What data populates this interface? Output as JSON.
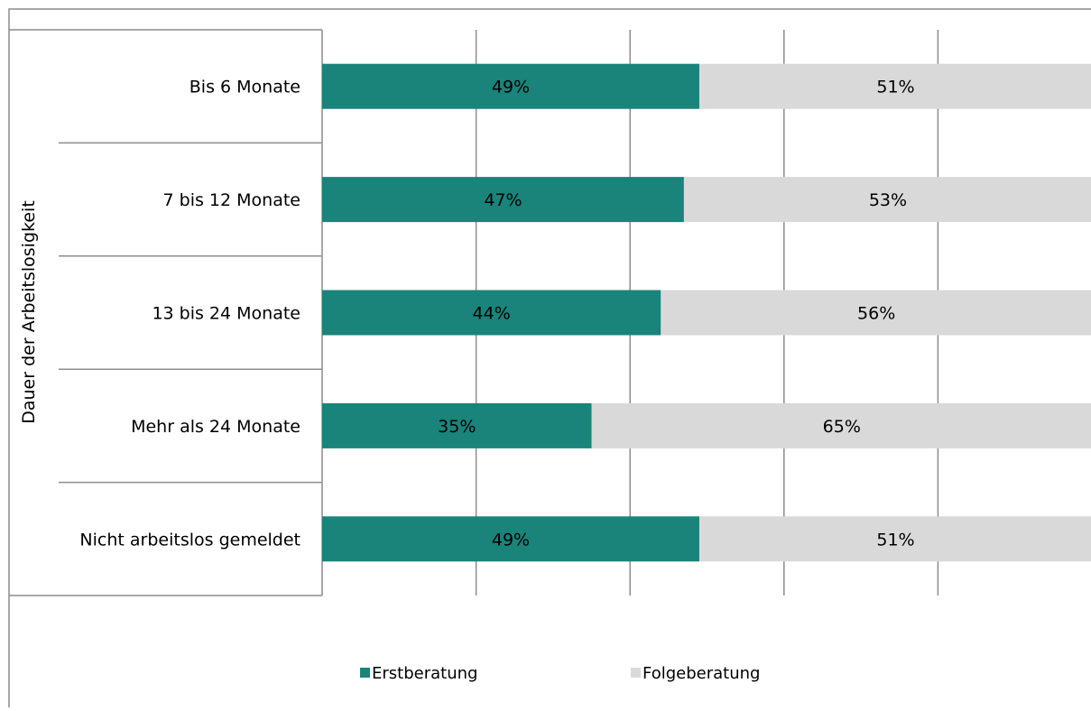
{
  "chart_data": {
    "type": "bar",
    "orientation": "horizontal",
    "stacked": true,
    "percent_scale": true,
    "y_axis_title": "Dauer der Arbeitslosigkeit",
    "categories": [
      "Bis 6 Monate",
      "7 bis 12 Monate",
      "13 bis 24 Monate",
      "Mehr als 24 Monate",
      "Nicht arbeitslos gemeldet"
    ],
    "series": [
      {
        "name": "Erstberatung",
        "values": [
          49,
          47,
          44,
          35,
          49
        ],
        "labels": [
          "49%",
          "47%",
          "44%",
          "35%",
          "49%"
        ],
        "color": "#1a837a"
      },
      {
        "name": "Folgeberatung",
        "values": [
          51,
          53,
          56,
          65,
          51
        ],
        "labels": [
          "51%",
          "53%",
          "56%",
          "65%",
          "51%"
        ],
        "color": "#d9d9d9"
      }
    ],
    "xlim": [
      0,
      100
    ],
    "gridlines": true,
    "legend_position": "bottom"
  }
}
